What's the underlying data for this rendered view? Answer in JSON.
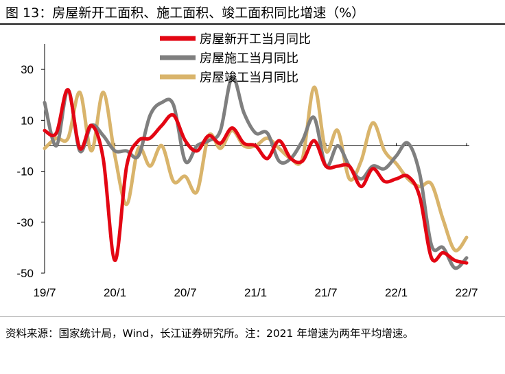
{
  "header": {
    "title": "图 13：房屋新开工面积、施工面积、竣工面积同比增速（%）"
  },
  "footer": {
    "source": "资料来源：国家统计局，Wind，长江证券研究所。注：2021 年增速为两年平均增速。"
  },
  "chart_data": {
    "type": "line",
    "title": "房屋新开工面积、施工面积、竣工面积同比增速（%）",
    "xlabel": "",
    "ylabel": "",
    "ylim": [
      -50,
      40
    ],
    "yticks": [
      30,
      10,
      -10,
      -30,
      -50
    ],
    "grid": false,
    "legend_position": "top-center",
    "x_tick_labels": [
      "19/7",
      "20/1",
      "20/7",
      "21/1",
      "21/7",
      "22/1",
      "22/7"
    ],
    "x": [
      "19/7",
      "19/8",
      "19/9",
      "19/10",
      "19/11",
      "19/12",
      "20/1",
      "20/2",
      "20/3",
      "20/4",
      "20/5",
      "20/6",
      "20/7",
      "20/8",
      "20/9",
      "20/10",
      "20/11",
      "20/12",
      "21/1",
      "21/2",
      "21/3",
      "21/4",
      "21/5",
      "21/6",
      "21/7",
      "21/8",
      "21/9",
      "21/10",
      "21/11",
      "21/12",
      "22/1",
      "22/2",
      "22/3",
      "22/4",
      "22/5",
      "22/6",
      "22/7"
    ],
    "series": [
      {
        "name": "房屋新开工当月同比",
        "color": "#e30613",
        "values": [
          6,
          5,
          22,
          -1,
          8,
          -5,
          -45,
          -8,
          2,
          3,
          8,
          12,
          2,
          -2,
          4,
          1,
          7,
          1,
          0,
          -5,
          2,
          -5,
          -6,
          2,
          -8,
          -8,
          -8,
          -16,
          -9,
          -14,
          -13,
          -12,
          -20,
          -44,
          -42,
          -45,
          -46
        ]
      },
      {
        "name": "房屋施工当月同比",
        "color": "#7f7f7f",
        "values": [
          17,
          0,
          22,
          -2,
          8,
          4,
          -2,
          -2,
          -4,
          12,
          17,
          16,
          -6,
          0,
          2,
          6,
          27,
          13,
          5,
          5,
          -6,
          -5,
          2,
          11,
          -8,
          0,
          -8,
          -13,
          -8,
          -9,
          -4,
          1,
          -11,
          -39,
          -40,
          -48,
          -44
        ]
      },
      {
        "name": "房屋竣工当月同比",
        "color": "#d9b46b",
        "values": [
          -1,
          3,
          3,
          21,
          -2,
          21,
          -4,
          -23,
          -1,
          -8,
          0,
          -14,
          -12,
          -18,
          4,
          -1,
          6,
          0,
          0,
          3,
          -1,
          -5,
          -5,
          23,
          -2,
          6,
          -13,
          -6,
          9,
          -2,
          -7,
          -13,
          -16,
          -15,
          -29,
          -41,
          -36
        ]
      }
    ]
  }
}
